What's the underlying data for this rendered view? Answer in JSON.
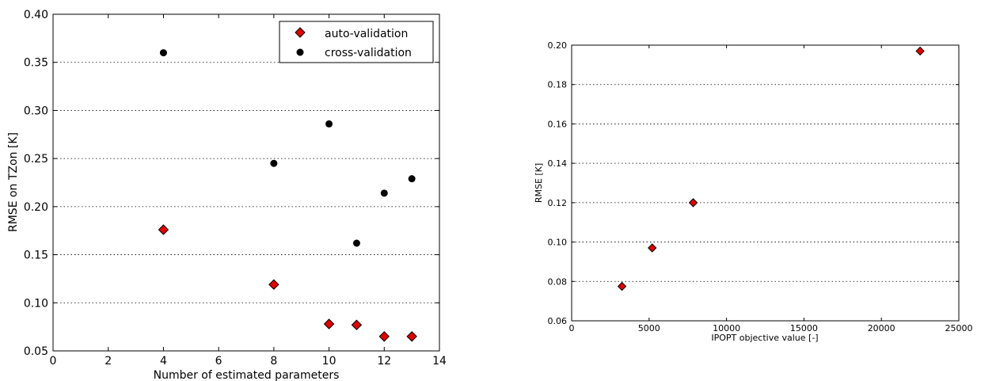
{
  "chart_data": [
    {
      "type": "scatter",
      "title": "",
      "xlabel": "Number of estimated parameters",
      "ylabel": "RMSE on TZon [K]",
      "xlim": [
        0,
        14
      ],
      "ylim": [
        0.05,
        0.4
      ],
      "x_ticks": [
        "0",
        "2",
        "4",
        "6",
        "8",
        "10",
        "12",
        "14"
      ],
      "y_ticks": [
        "0.05",
        "0.10",
        "0.15",
        "0.20",
        "0.25",
        "0.30",
        "0.35",
        "0.40"
      ],
      "grid": "horizontal-dotted",
      "legend_position": "top-right",
      "series": [
        {
          "name": "auto-validation",
          "marker": "diamond",
          "color": "#e00000",
          "points": [
            [
              4,
              0.176
            ],
            [
              8,
              0.119
            ],
            [
              10,
              0.078
            ],
            [
              11,
              0.077
            ],
            [
              12,
              0.065
            ],
            [
              13,
              0.065
            ]
          ]
        },
        {
          "name": "cross-validation",
          "marker": "circle",
          "color": "#000000",
          "points": [
            [
              4,
              0.36
            ],
            [
              8,
              0.245
            ],
            [
              10,
              0.286
            ],
            [
              11,
              0.162
            ],
            [
              12,
              0.214
            ],
            [
              13,
              0.229
            ]
          ]
        }
      ]
    },
    {
      "type": "scatter",
      "title": "",
      "xlabel": "IPOPT objective value [-]",
      "ylabel": "RMSE [K]",
      "xlim": [
        0,
        25000
      ],
      "ylim": [
        0.06,
        0.2
      ],
      "x_ticks": [
        "0",
        "5000",
        "10000",
        "15000",
        "20000",
        "25000"
      ],
      "y_ticks": [
        "0.06",
        "0.08",
        "0.10",
        "0.12",
        "0.14",
        "0.16",
        "0.18",
        "0.20"
      ],
      "grid": "horizontal-dotted",
      "series": [
        {
          "marker": "diamond",
          "color": "#e00000",
          "points": [
            [
              3250,
              0.0775
            ],
            [
              5200,
              0.097
            ],
            [
              7850,
              0.12
            ],
            [
              22500,
              0.197
            ]
          ]
        }
      ]
    }
  ]
}
